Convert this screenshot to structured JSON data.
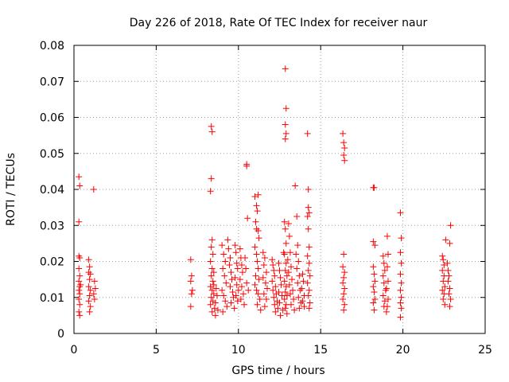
{
  "chart_data": {
    "type": "scatter",
    "title": "Day 226 of 2018, Rate Of TEC Index for receiver naur",
    "xlabel": "GPS time / hours",
    "ylabel": "ROTI / TECUs",
    "xlim": [
      0,
      25
    ],
    "ylim": [
      0,
      0.08
    ],
    "x_ticks": [
      "0",
      "5",
      "10",
      "15",
      "20",
      "25"
    ],
    "y_ticks": [
      "0",
      "0.01",
      "0.02",
      "0.03",
      "0.04",
      "0.05",
      "0.06",
      "0.07",
      "0.08"
    ],
    "grid": true,
    "marker": "+",
    "color": "#ff0000",
    "series": [
      {
        "points": [
          [
            0.3,
            0.0435
          ],
          [
            0.35,
            0.041
          ],
          [
            0.3,
            0.031
          ],
          [
            0.3,
            0.0215
          ],
          [
            0.35,
            0.021
          ],
          [
            0.3,
            0.018
          ],
          [
            0.35,
            0.016
          ],
          [
            0.3,
            0.0145
          ],
          [
            0.35,
            0.013
          ],
          [
            0.3,
            0.012
          ],
          [
            0.35,
            0.011
          ],
          [
            0.3,
            0.0095
          ],
          [
            0.35,
            0.008
          ],
          [
            0.3,
            0.006
          ],
          [
            0.35,
            0.005
          ],
          [
            0.4,
            0.0135
          ],
          [
            0.9,
            0.0205
          ],
          [
            0.95,
            0.0185
          ],
          [
            0.9,
            0.017
          ],
          [
            1.0,
            0.0165
          ],
          [
            0.95,
            0.015
          ],
          [
            0.9,
            0.013
          ],
          [
            1.0,
            0.012
          ],
          [
            0.95,
            0.0105
          ],
          [
            0.9,
            0.009
          ],
          [
            1.0,
            0.0075
          ],
          [
            0.95,
            0.006
          ],
          [
            1.2,
            0.04
          ],
          [
            1.25,
            0.0145
          ],
          [
            1.3,
            0.0125
          ],
          [
            1.2,
            0.011
          ],
          [
            1.25,
            0.0095
          ],
          [
            7.1,
            0.0205
          ],
          [
            7.15,
            0.016
          ],
          [
            7.1,
            0.0145
          ],
          [
            7.2,
            0.012
          ],
          [
            7.15,
            0.011
          ],
          [
            7.1,
            0.0075
          ],
          [
            8.35,
            0.0575
          ],
          [
            8.4,
            0.056
          ],
          [
            8.35,
            0.043
          ],
          [
            8.3,
            0.0395
          ],
          [
            8.4,
            0.026
          ],
          [
            8.35,
            0.024
          ],
          [
            8.45,
            0.022
          ],
          [
            8.3,
            0.02
          ],
          [
            8.4,
            0.018
          ],
          [
            8.5,
            0.017
          ],
          [
            8.35,
            0.016
          ],
          [
            8.45,
            0.0145
          ],
          [
            8.3,
            0.013
          ],
          [
            8.4,
            0.012
          ],
          [
            8.5,
            0.011
          ],
          [
            8.35,
            0.01
          ],
          [
            8.45,
            0.009
          ],
          [
            8.3,
            0.008
          ],
          [
            8.55,
            0.007
          ],
          [
            8.4,
            0.006
          ],
          [
            8.6,
            0.005
          ],
          [
            8.5,
            0.0135
          ],
          [
            8.65,
            0.0125
          ],
          [
            8.7,
            0.0105
          ],
          [
            8.6,
            0.0085
          ],
          [
            8.75,
            0.0065
          ],
          [
            9.0,
            0.0245
          ],
          [
            9.1,
            0.022
          ],
          [
            9.2,
            0.02
          ],
          [
            9.05,
            0.018
          ],
          [
            9.15,
            0.016
          ],
          [
            9.25,
            0.014
          ],
          [
            9.0,
            0.012
          ],
          [
            9.1,
            0.0105
          ],
          [
            9.2,
            0.009
          ],
          [
            9.3,
            0.0075
          ],
          [
            9.05,
            0.006
          ],
          [
            9.35,
            0.026
          ],
          [
            9.4,
            0.0235
          ],
          [
            9.5,
            0.021
          ],
          [
            9.45,
            0.019
          ],
          [
            9.55,
            0.017
          ],
          [
            9.6,
            0.015
          ],
          [
            9.5,
            0.013
          ],
          [
            9.65,
            0.0115
          ],
          [
            9.7,
            0.01
          ],
          [
            9.55,
            0.0085
          ],
          [
            9.75,
            0.007
          ],
          [
            9.8,
            0.0245
          ],
          [
            9.85,
            0.0225
          ],
          [
            9.9,
            0.0195
          ],
          [
            9.95,
            0.018
          ],
          [
            9.8,
            0.0155
          ],
          [
            9.9,
            0.0135
          ],
          [
            10.0,
            0.012
          ],
          [
            9.85,
            0.0105
          ],
          [
            9.95,
            0.009
          ],
          [
            10.1,
            0.0235
          ],
          [
            10.15,
            0.021
          ],
          [
            10.2,
            0.019
          ],
          [
            10.25,
            0.017
          ],
          [
            10.1,
            0.015
          ],
          [
            10.2,
            0.013
          ],
          [
            10.3,
            0.011
          ],
          [
            10.15,
            0.0095
          ],
          [
            10.35,
            0.008
          ],
          [
            10.5,
            0.047
          ],
          [
            10.5,
            0.0465
          ],
          [
            10.55,
            0.032
          ],
          [
            10.4,
            0.021
          ],
          [
            10.45,
            0.018
          ],
          [
            10.5,
            0.014
          ],
          [
            10.6,
            0.012
          ],
          [
            11.0,
            0.038
          ],
          [
            11.1,
            0.0355
          ],
          [
            11.15,
            0.034
          ],
          [
            11.2,
            0.0385
          ],
          [
            11.05,
            0.031
          ],
          [
            11.1,
            0.029
          ],
          [
            11.2,
            0.0285
          ],
          [
            11.25,
            0.0265
          ],
          [
            11.0,
            0.024
          ],
          [
            11.1,
            0.022
          ],
          [
            11.15,
            0.02
          ],
          [
            11.2,
            0.018
          ],
          [
            11.05,
            0.016
          ],
          [
            11.25,
            0.015
          ],
          [
            11.0,
            0.0135
          ],
          [
            11.1,
            0.012
          ],
          [
            11.2,
            0.011
          ],
          [
            11.3,
            0.0095
          ],
          [
            11.15,
            0.008
          ],
          [
            11.35,
            0.0065
          ],
          [
            11.5,
            0.0225
          ],
          [
            11.6,
            0.021
          ],
          [
            11.55,
            0.019
          ],
          [
            11.7,
            0.017
          ],
          [
            11.5,
            0.0155
          ],
          [
            11.65,
            0.014
          ],
          [
            11.75,
            0.0125
          ],
          [
            11.55,
            0.011
          ],
          [
            11.7,
            0.0095
          ],
          [
            11.6,
            0.0075
          ],
          [
            12.05,
            0.0205
          ],
          [
            12.1,
            0.019
          ],
          [
            12.15,
            0.0175
          ],
          [
            12.2,
            0.016
          ],
          [
            12.05,
            0.0145
          ],
          [
            12.25,
            0.013
          ],
          [
            12.1,
            0.012
          ],
          [
            12.3,
            0.011
          ],
          [
            12.15,
            0.01
          ],
          [
            12.35,
            0.009
          ],
          [
            12.2,
            0.008
          ],
          [
            12.4,
            0.007
          ],
          [
            12.25,
            0.006
          ],
          [
            12.45,
            0.0195
          ],
          [
            12.5,
            0.0175
          ],
          [
            12.55,
            0.0155
          ],
          [
            12.6,
            0.0135
          ],
          [
            12.45,
            0.0115
          ],
          [
            12.65,
            0.0105
          ],
          [
            12.5,
            0.0085
          ],
          [
            12.7,
            0.0065
          ],
          [
            12.55,
            0.005
          ],
          [
            12.75,
            0.0225
          ],
          [
            12.85,
            0.0735
          ],
          [
            12.9,
            0.0625
          ],
          [
            12.85,
            0.058
          ],
          [
            12.9,
            0.0555
          ],
          [
            12.85,
            0.054
          ],
          [
            12.8,
            0.031
          ],
          [
            12.85,
            0.029
          ],
          [
            12.9,
            0.025
          ],
          [
            12.8,
            0.022
          ],
          [
            12.9,
            0.0195
          ],
          [
            12.85,
            0.0175
          ],
          [
            12.95,
            0.016
          ],
          [
            12.8,
            0.0145
          ],
          [
            12.9,
            0.013
          ],
          [
            12.85,
            0.0115
          ],
          [
            12.95,
            0.0105
          ],
          [
            12.8,
            0.0095
          ],
          [
            12.9,
            0.008
          ],
          [
            12.85,
            0.007
          ],
          [
            12.95,
            0.0055
          ],
          [
            13.05,
            0.0305
          ],
          [
            13.1,
            0.027
          ],
          [
            13.15,
            0.0225
          ],
          [
            13.0,
            0.0205
          ],
          [
            13.2,
            0.0185
          ],
          [
            13.05,
            0.017
          ],
          [
            13.25,
            0.015
          ],
          [
            13.1,
            0.0135
          ],
          [
            13.3,
            0.012
          ],
          [
            13.15,
            0.011
          ],
          [
            13.35,
            0.0095
          ],
          [
            13.2,
            0.008
          ],
          [
            13.4,
            0.0065
          ],
          [
            13.45,
            0.041
          ],
          [
            13.55,
            0.0325
          ],
          [
            13.6,
            0.0245
          ],
          [
            13.5,
            0.022
          ],
          [
            13.65,
            0.02
          ],
          [
            13.55,
            0.018
          ],
          [
            13.7,
            0.016
          ],
          [
            13.6,
            0.014
          ],
          [
            13.75,
            0.012
          ],
          [
            13.65,
            0.01
          ],
          [
            13.8,
            0.0085
          ],
          [
            13.7,
            0.007
          ],
          [
            13.9,
            0.0165
          ],
          [
            13.95,
            0.0145
          ],
          [
            13.85,
            0.0125
          ],
          [
            14.0,
            0.0105
          ],
          [
            13.9,
            0.009
          ],
          [
            14.0,
            0.0075
          ],
          [
            14.2,
            0.0555
          ],
          [
            14.25,
            0.04
          ],
          [
            14.25,
            0.035
          ],
          [
            14.3,
            0.0335
          ],
          [
            14.2,
            0.0325
          ],
          [
            14.25,
            0.029
          ],
          [
            14.3,
            0.024
          ],
          [
            14.2,
            0.0215
          ],
          [
            14.3,
            0.0195
          ],
          [
            14.25,
            0.0175
          ],
          [
            14.35,
            0.016
          ],
          [
            14.2,
            0.014
          ],
          [
            14.3,
            0.012
          ],
          [
            14.25,
            0.0105
          ],
          [
            14.35,
            0.0085
          ],
          [
            14.3,
            0.007
          ],
          [
            16.35,
            0.0555
          ],
          [
            16.4,
            0.053
          ],
          [
            16.45,
            0.0515
          ],
          [
            16.4,
            0.0495
          ],
          [
            16.45,
            0.048
          ],
          [
            16.4,
            0.022
          ],
          [
            16.35,
            0.0185
          ],
          [
            16.45,
            0.017
          ],
          [
            16.4,
            0.0155
          ],
          [
            16.35,
            0.014
          ],
          [
            16.45,
            0.0125
          ],
          [
            16.4,
            0.011
          ],
          [
            16.35,
            0.0095
          ],
          [
            16.45,
            0.008
          ],
          [
            16.4,
            0.0065
          ],
          [
            18.2,
            0.0405
          ],
          [
            18.25,
            0.0405
          ],
          [
            18.2,
            0.0255
          ],
          [
            18.3,
            0.0245
          ],
          [
            18.2,
            0.0185
          ],
          [
            18.25,
            0.0165
          ],
          [
            18.3,
            0.0145
          ],
          [
            18.2,
            0.013
          ],
          [
            18.25,
            0.0115
          ],
          [
            18.3,
            0.0095
          ],
          [
            18.2,
            0.0085
          ],
          [
            18.25,
            0.0065
          ],
          [
            18.8,
            0.0215
          ],
          [
            18.85,
            0.0195
          ],
          [
            18.9,
            0.0175
          ],
          [
            18.8,
            0.016
          ],
          [
            18.85,
            0.014
          ],
          [
            18.95,
            0.012
          ],
          [
            18.8,
            0.0105
          ],
          [
            18.9,
            0.009
          ],
          [
            18.85,
            0.0075
          ],
          [
            19.0,
            0.006
          ],
          [
            19.05,
            0.027
          ],
          [
            19.1,
            0.022
          ],
          [
            19.05,
            0.0185
          ],
          [
            19.1,
            0.0145
          ],
          [
            19.0,
            0.0125
          ],
          [
            19.1,
            0.0095
          ],
          [
            19.05,
            0.0075
          ],
          [
            19.85,
            0.0335
          ],
          [
            19.9,
            0.0265
          ],
          [
            19.85,
            0.0225
          ],
          [
            19.9,
            0.0195
          ],
          [
            19.85,
            0.0165
          ],
          [
            19.9,
            0.014
          ],
          [
            19.85,
            0.012
          ],
          [
            19.9,
            0.01
          ],
          [
            19.85,
            0.0085
          ],
          [
            19.9,
            0.007
          ],
          [
            19.85,
            0.0045
          ],
          [
            22.4,
            0.0215
          ],
          [
            22.45,
            0.0205
          ],
          [
            22.5,
            0.019
          ],
          [
            22.4,
            0.0175
          ],
          [
            22.5,
            0.016
          ],
          [
            22.45,
            0.0145
          ],
          [
            22.55,
            0.013
          ],
          [
            22.4,
            0.012
          ],
          [
            22.5,
            0.011
          ],
          [
            22.45,
            0.0095
          ],
          [
            22.55,
            0.008
          ],
          [
            22.6,
            0.026
          ],
          [
            22.7,
            0.0195
          ],
          [
            22.75,
            0.0175
          ],
          [
            22.8,
            0.016
          ],
          [
            22.75,
            0.0145
          ],
          [
            22.85,
            0.0125
          ],
          [
            22.8,
            0.011
          ],
          [
            22.9,
            0.0095
          ],
          [
            22.85,
            0.0075
          ],
          [
            22.9,
            0.03
          ],
          [
            22.85,
            0.025
          ]
        ]
      }
    ]
  }
}
